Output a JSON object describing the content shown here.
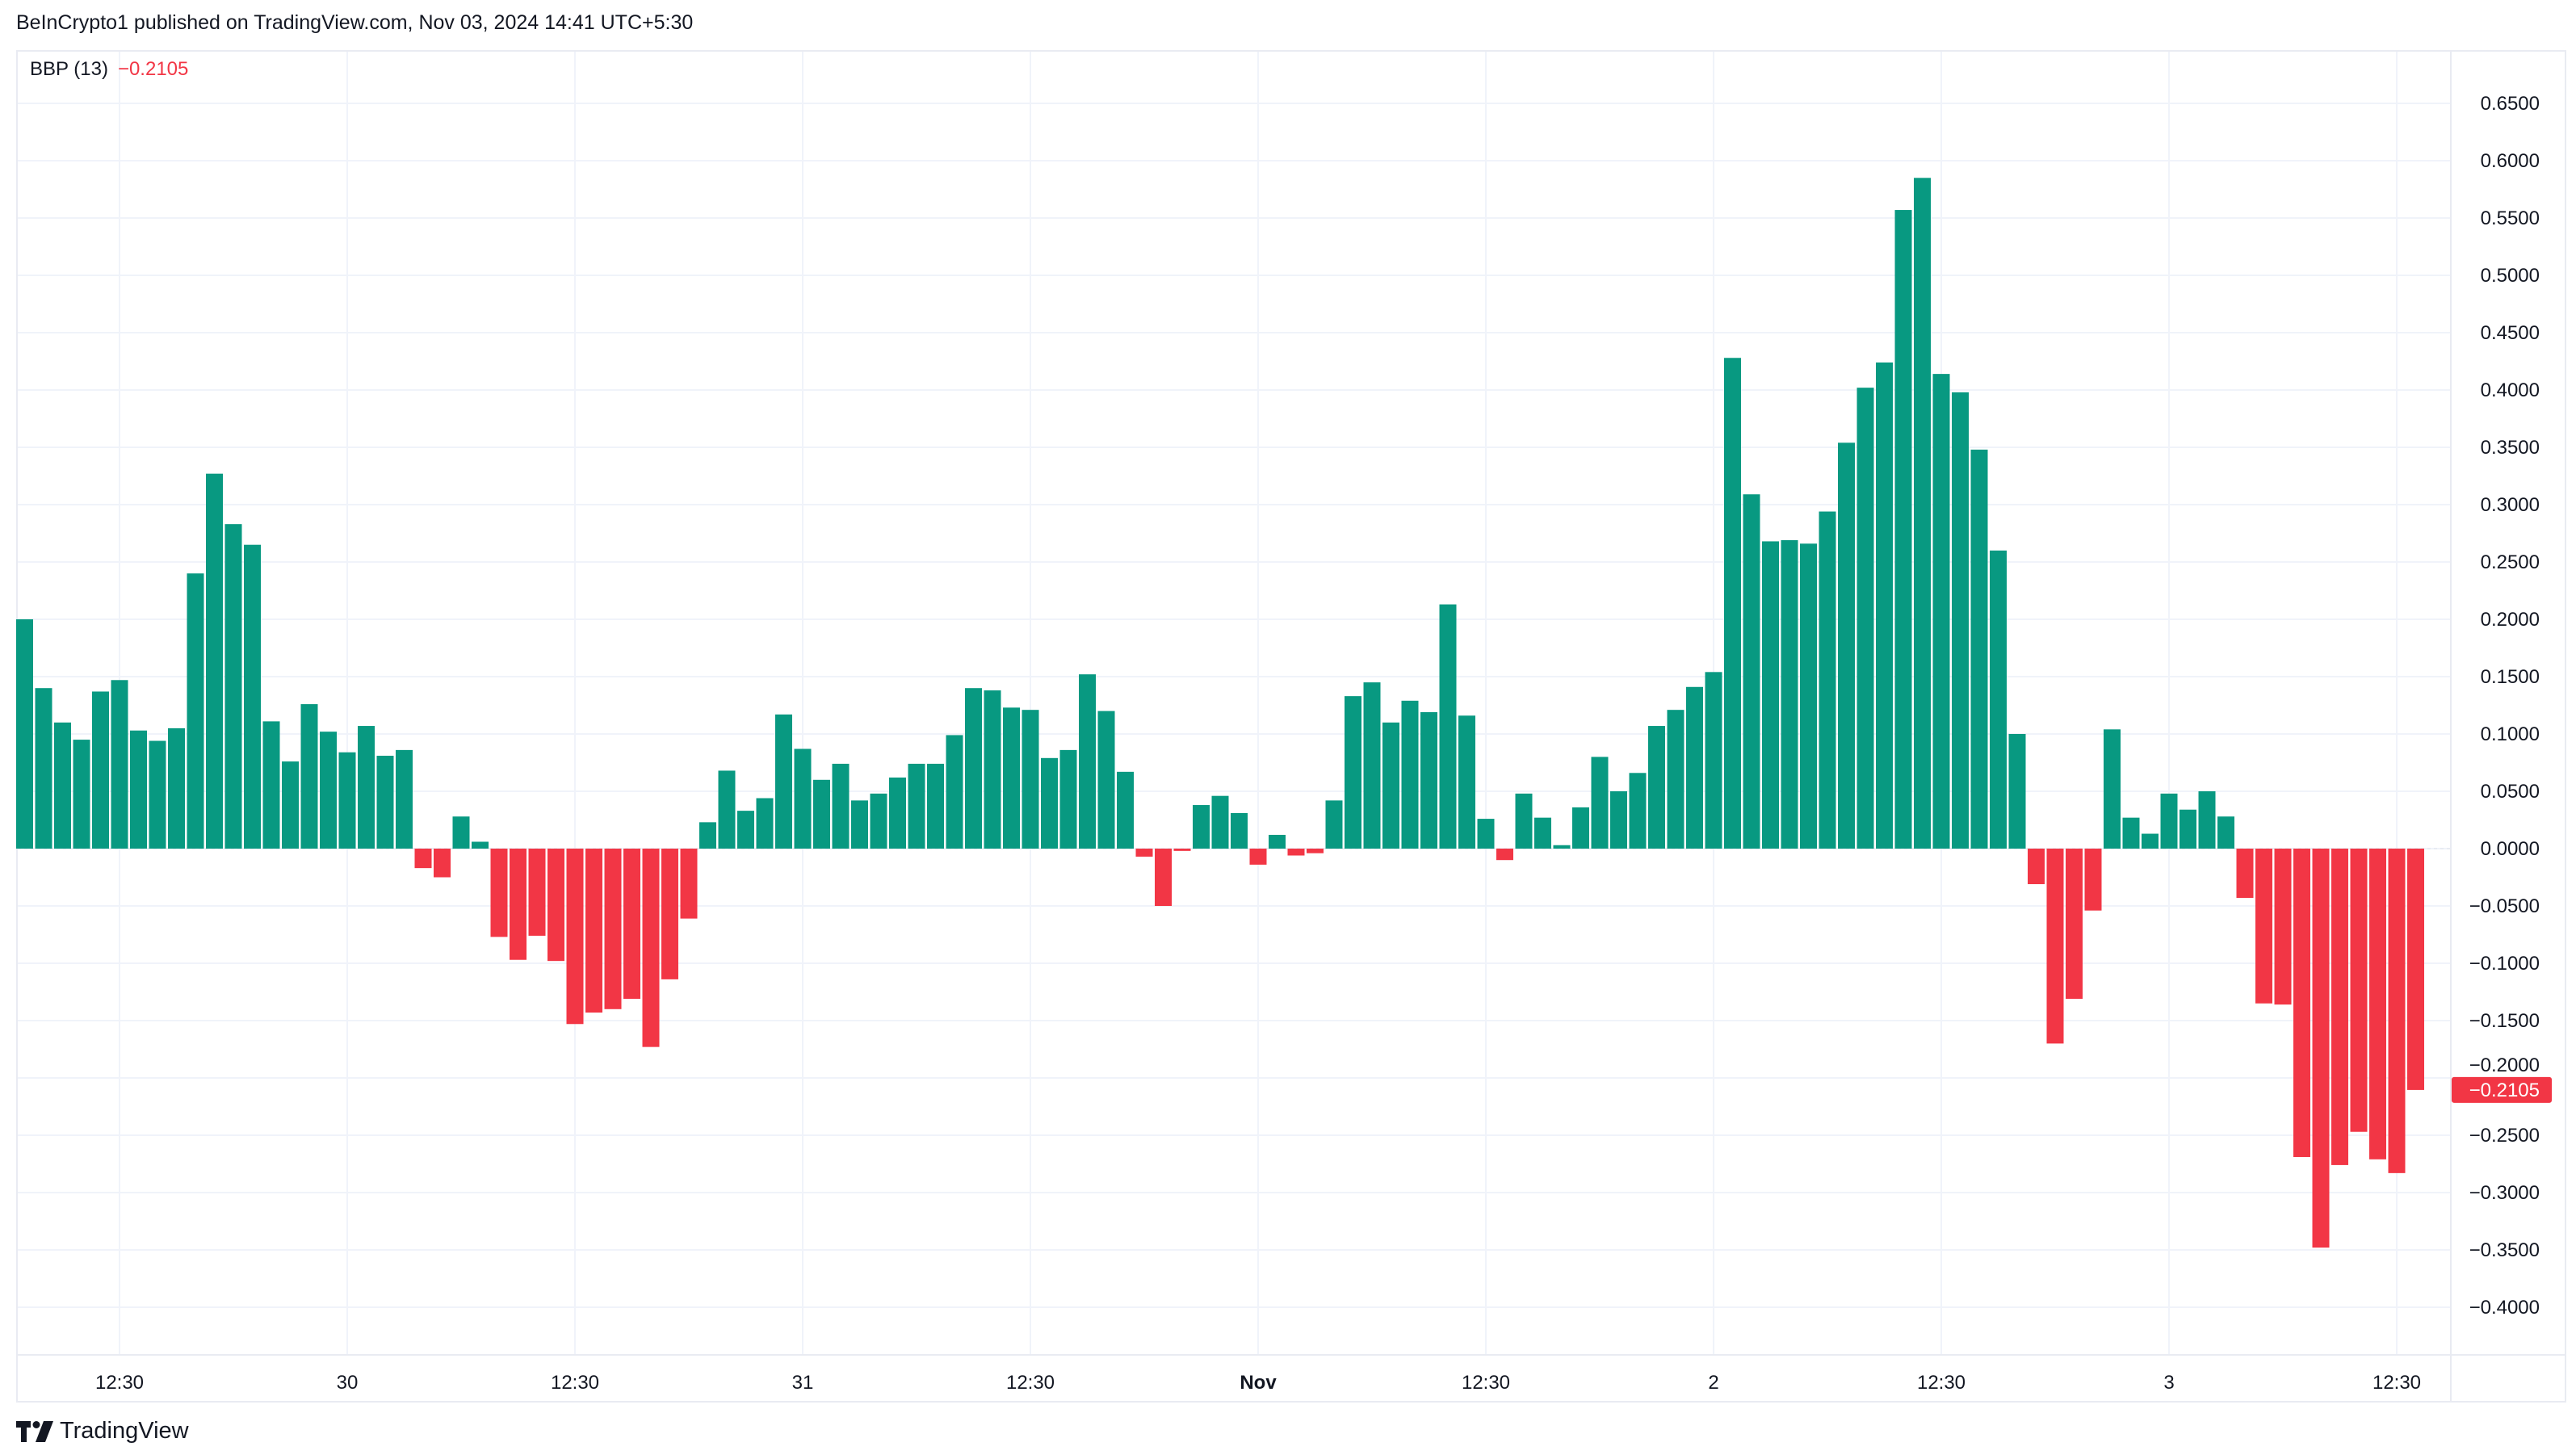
{
  "header": {
    "published": "BeInCrypto1 published on TradingView.com, Nov 03, 2024 14:41 UTC+5:30"
  },
  "legend": {
    "name": "BBP (13)",
    "value": "−0.2105"
  },
  "logo": {
    "text": "TradingView"
  },
  "colors": {
    "positive": "#089981",
    "negative": "#F23645",
    "grid": "#f0f3fa",
    "text": "#131722"
  },
  "chart_data": {
    "type": "bar",
    "title": "BBP (13)",
    "last_value_label": "−0.2105",
    "ylim": [
      -0.43,
      0.68
    ],
    "y_ticks": [
      0.65,
      0.6,
      0.55,
      0.5,
      0.45,
      0.4,
      0.35,
      0.3,
      0.25,
      0.2,
      0.15,
      0.1,
      0.05,
      0,
      -0.05,
      -0.1,
      -0.15,
      -0.2,
      -0.25,
      -0.3,
      -0.35,
      -0.4
    ],
    "x_ticks": [
      {
        "label": "12:30",
        "bar": 5,
        "bold": false
      },
      {
        "label": "30",
        "bar": 17,
        "bold": false
      },
      {
        "label": "12:30",
        "bar": 29,
        "bold": false
      },
      {
        "label": "31",
        "bar": 41,
        "bold": false
      },
      {
        "label": "12:30",
        "bar": 53,
        "bold": false
      },
      {
        "label": "Nov",
        "bar": 65,
        "bold": true
      },
      {
        "label": "12:30",
        "bar": 77,
        "bold": false
      },
      {
        "label": "2",
        "bar": 89,
        "bold": false
      },
      {
        "label": "12:30",
        "bar": 101,
        "bold": false
      },
      {
        "label": "3",
        "bar": 113,
        "bold": false
      },
      {
        "label": "12:30",
        "bar": 125,
        "bold": false
      }
    ],
    "grid": true,
    "values": [
      0.2,
      0.14,
      0.11,
      0.095,
      0.137,
      0.147,
      0.103,
      0.094,
      0.105,
      0.24,
      0.327,
      0.283,
      0.265,
      0.111,
      0.076,
      0.126,
      0.102,
      0.084,
      0.107,
      0.081,
      0.086,
      -0.017,
      -0.025,
      0.028,
      0.006,
      -0.077,
      -0.097,
      -0.076,
      -0.098,
      -0.153,
      -0.143,
      -0.14,
      -0.131,
      -0.173,
      -0.114,
      -0.061,
      0.023,
      0.068,
      0.033,
      0.044,
      0.117,
      0.087,
      0.06,
      0.074,
      0.042,
      0.048,
      0.062,
      0.074,
      0.074,
      0.099,
      0.14,
      0.138,
      0.123,
      0.121,
      0.079,
      0.086,
      0.152,
      0.12,
      0.067,
      -0.007,
      -0.05,
      -0.002,
      0.038,
      0.046,
      0.031,
      -0.014,
      0.012,
      -0.006,
      -0.004,
      0.042,
      0.133,
      0.145,
      0.11,
      0.129,
      0.119,
      0.213,
      0.116,
      0.026,
      -0.01,
      0.048,
      0.027,
      0.003,
      0.036,
      0.08,
      0.05,
      0.066,
      0.107,
      0.121,
      0.141,
      0.154,
      0.428,
      0.309,
      0.268,
      0.269,
      0.266,
      0.294,
      0.354,
      0.402,
      0.424,
      0.557,
      0.585,
      0.414,
      0.398,
      0.348,
      0.26,
      0.1,
      -0.031,
      -0.17,
      -0.131,
      -0.054,
      0.104,
      0.027,
      0.013,
      0.048,
      0.034,
      0.05,
      0.028,
      -0.043,
      -0.135,
      -0.136,
      -0.269,
      -0.348,
      -0.276,
      -0.247,
      -0.271,
      -0.283,
      -0.2105
    ]
  }
}
